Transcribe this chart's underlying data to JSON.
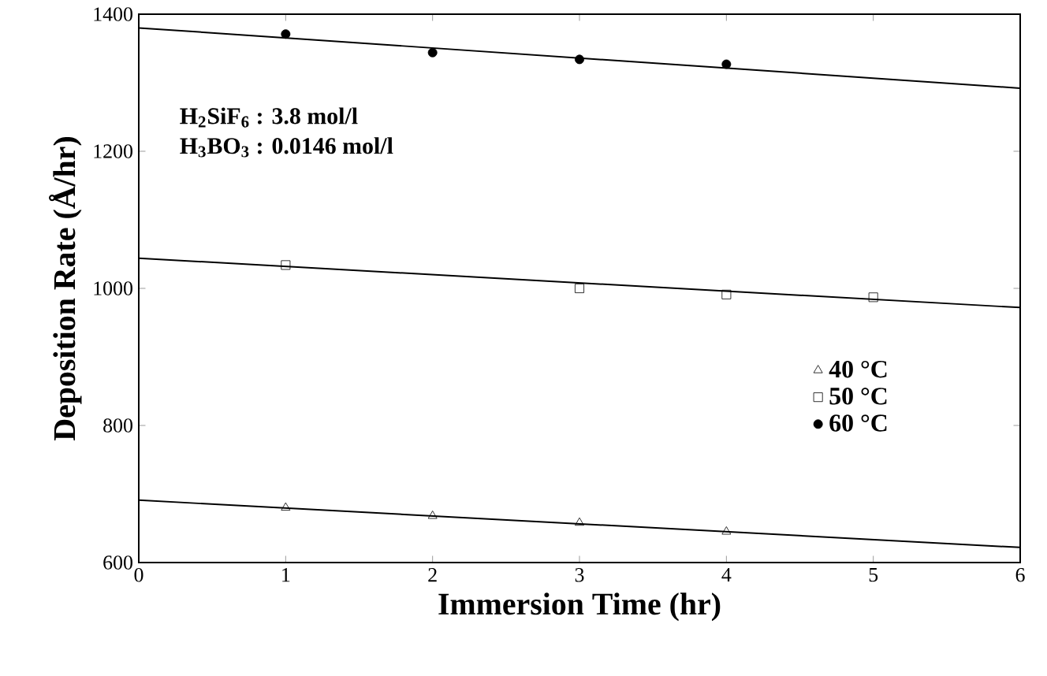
{
  "chart_data": {
    "type": "scatter",
    "xlabel": "Immersion Time (hr)",
    "ylabel": "Deposition Rate (Å/hr)",
    "xlim": [
      0,
      6
    ],
    "ylim": [
      600,
      1400
    ],
    "xticks": [
      0,
      1,
      2,
      3,
      4,
      5,
      6
    ],
    "yticks": [
      600,
      800,
      1000,
      1200,
      1400
    ],
    "grid": false,
    "legend": "right",
    "annotations": [
      "H$_{2}$SiF$_{6}$ : 3.8 mol/l",
      "H$_{3}$BO$_{3}$ : 0.0146 mol/l"
    ],
    "series": [
      {
        "name": "40 °C",
        "marker": "triangle",
        "color": "#000000",
        "x": [
          1,
          2,
          3,
          4
        ],
        "values": [
          680,
          668,
          658,
          645
        ]
      },
      {
        "name": "50 °C",
        "marker": "square",
        "color": "#000000",
        "x": [
          1,
          3,
          4,
          5
        ],
        "values": [
          1034,
          1000,
          991,
          987
        ]
      },
      {
        "name": "60 °C",
        "marker": "circle",
        "color": "#000000",
        "x": [
          1,
          2,
          3,
          4
        ],
        "values": [
          1371,
          1344,
          1334,
          1327
        ]
      },
      {
        "type": "line",
        "marker": "none",
        "color": "#000000",
        "x": [
          0,
          6
        ],
        "values": [
          691,
          622
        ]
      },
      {
        "type": "line",
        "marker": "none",
        "color": "#000000",
        "x": [
          0,
          6
        ],
        "values": [
          1044,
          972
        ]
      },
      {
        "type": "line",
        "marker": "none",
        "color": "#000000",
        "x": [
          0,
          6
        ],
        "values": [
          1380,
          1292
        ]
      }
    ]
  }
}
